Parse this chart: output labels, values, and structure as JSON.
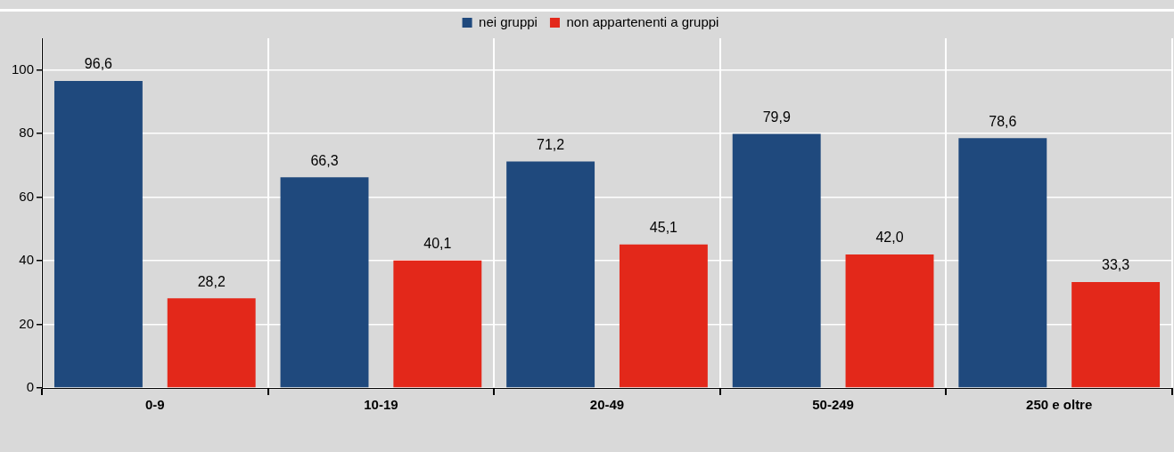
{
  "chart_data": {
    "type": "bar",
    "categories": [
      "0-9",
      "10-19",
      "20-49",
      "50-249",
      "250 e oltre"
    ],
    "series": [
      {
        "name": "nei gruppi",
        "color": "#1f497d",
        "values": [
          96.6,
          66.3,
          71.2,
          79.9,
          78.6
        ],
        "value_labels": [
          "96,6",
          "66,3",
          "71,2",
          "79,9",
          "78,6"
        ]
      },
      {
        "name": "non appartenenti a gruppi",
        "color": "#e3281a",
        "values": [
          28.2,
          40.1,
          45.1,
          42.0,
          33.3
        ],
        "value_labels": [
          "28,2",
          "40,1",
          "45,1",
          "42,0",
          "33,3"
        ]
      }
    ],
    "ylim": [
      0,
      110
    ],
    "yticks": [
      0,
      20,
      40,
      60,
      80,
      100
    ],
    "grid": true,
    "legend": "top"
  }
}
